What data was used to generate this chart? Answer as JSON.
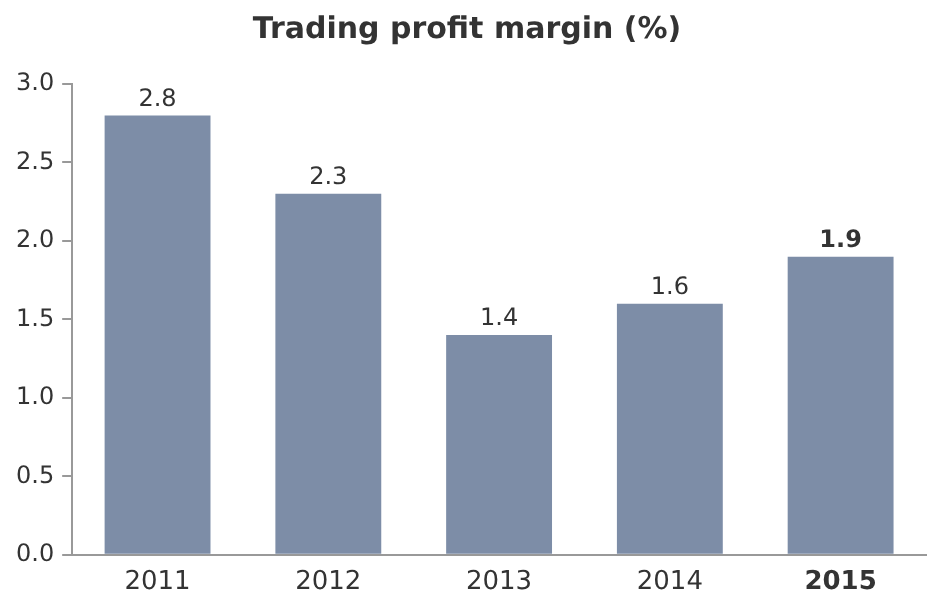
{
  "chart_data": {
    "type": "bar",
    "title": "Trading profit margin (%)",
    "categories": [
      "2011",
      "2012",
      "2013",
      "2014",
      "2015"
    ],
    "values": [
      2.8,
      2.3,
      1.4,
      1.6,
      1.9
    ],
    "color": "#7d8da7",
    "ylim": [
      0,
      3
    ],
    "yticks": [
      {
        "value": 0,
        "label": "0.0"
      },
      {
        "value": 0.5,
        "label": "0.5"
      },
      {
        "value": 1,
        "label": "1.0"
      },
      {
        "value": 1.5,
        "label": "1.5"
      },
      {
        "value": 2,
        "label": "2.0"
      },
      {
        "value": 2.5,
        "label": "2.5"
      },
      {
        "value": 3,
        "label": "3.0"
      }
    ],
    "grid": false,
    "legend": false,
    "data_labels": true
  }
}
